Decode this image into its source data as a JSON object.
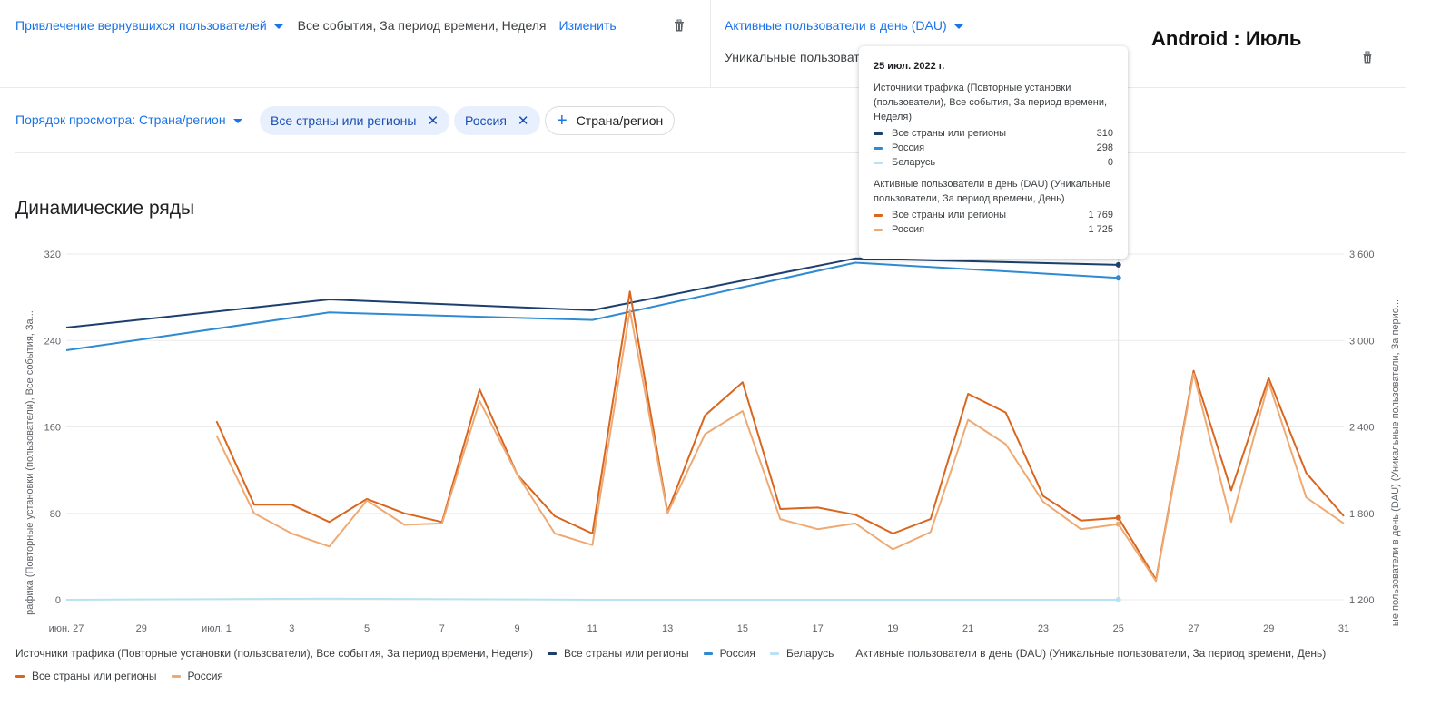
{
  "header": {
    "left": {
      "title": "Привлечение вернувшихся пользователей",
      "summary": "Все события, За период времени, Неделя",
      "edit_label": "Изменить"
    },
    "right": {
      "title": "Активные пользователи в день (DAU)",
      "summary": "Уникальные пользователи",
      "overlay_title": "Android : Июль"
    }
  },
  "filters": {
    "order_label": "Порядок просмотра: Страна/регион",
    "chips": [
      {
        "label": "Все страны или регионы"
      },
      {
        "label": "Россия"
      }
    ],
    "add_chip_label": "Страна/регион"
  },
  "section_title": "Динамические ряды",
  "tooltip": {
    "date": "25 июл. 2022 г.",
    "group1_title": "Источники трафика (Повторные установки (пользователи), Все события, За период времени, Неделя)",
    "group1_rows": [
      {
        "name": "Все страны или регионы",
        "value": "310",
        "color": "#1c3f6e"
      },
      {
        "name": "Россия",
        "value": "298",
        "color": "#2e8bd3"
      },
      {
        "name": "Беларусь",
        "value": "0",
        "color": "#b9e2f2"
      }
    ],
    "group2_title": "Активные пользователи в день (DAU) (Уникальные пользователи, За период времени, День)",
    "group2_rows": [
      {
        "name": "Все страны или регионы",
        "value": "1 769",
        "color": "#d9661f"
      },
      {
        "name": "Россия",
        "value": "1 725",
        "color": "#efaa74"
      }
    ]
  },
  "chart_data": {
    "type": "line",
    "left_axis": {
      "label": "рафика (Повторные установки (пользователи), Все события, За...",
      "ticks": [
        "320",
        "240",
        "160",
        "80",
        "0"
      ],
      "range": [
        0,
        320
      ]
    },
    "right_axis": {
      "label": "ые пользователи в день (DAU) (Уникальные пользователи, За перио...",
      "ticks": [
        "3 600",
        "3 000",
        "2 400",
        "1 800",
        "1 200"
      ],
      "range": [
        1200,
        3600
      ]
    },
    "x_ticks": [
      "июн. 27",
      "29",
      "июл. 1",
      "3",
      "5",
      "7",
      "9",
      "11",
      "13",
      "15",
      "17",
      "19",
      "21",
      "23",
      "25",
      "27",
      "29",
      "31"
    ],
    "weekly_x": [
      "июн. 27",
      "июл. 4",
      "июл. 11",
      "июл. 18",
      "июл. 25"
    ],
    "daily_x": [
      "июл. 1",
      "июл. 2",
      "июл. 3",
      "июл. 4",
      "июл. 5",
      "июл. 6",
      "июл. 7",
      "июл. 8",
      "июл. 9",
      "июл. 10",
      "июл. 11",
      "июл. 12",
      "июл. 13",
      "июл. 14",
      "июл. 15",
      "июл. 16",
      "июл. 17",
      "июл. 18",
      "июл. 19",
      "июл. 20",
      "июл. 21",
      "июл. 22",
      "июл. 23",
      "июл. 24",
      "июл. 25",
      "июл. 26",
      "июл. 27",
      "июл. 28",
      "июл. 29",
      "июл. 30",
      "июл. 31"
    ],
    "series": [
      {
        "name": "Все страны или регионы",
        "axis": "left",
        "group": "weekly",
        "color": "#1c3f6e",
        "values": [
          252,
          278,
          268,
          316,
          310
        ]
      },
      {
        "name": "Россия",
        "axis": "left",
        "group": "weekly",
        "color": "#2e8bd3",
        "values": [
          231,
          266,
          259,
          312,
          298
        ]
      },
      {
        "name": "Беларусь",
        "axis": "left",
        "group": "weekly",
        "color": "#b9e2f2",
        "values": [
          0,
          1,
          0,
          0,
          0
        ]
      },
      {
        "name": "Все страны или регионы",
        "axis": "right",
        "group": "daily",
        "color": "#d9661f",
        "values": [
          2440,
          1860,
          1860,
          1740,
          1900,
          1800,
          1740,
          2660,
          2070,
          1780,
          1660,
          3340,
          1810,
          2480,
          2710,
          1830,
          1840,
          1790,
          1660,
          1760,
          2630,
          2500,
          1920,
          1750,
          1769,
          1340,
          2790,
          1960,
          2740,
          2080,
          1780
        ]
      },
      {
        "name": "Россия",
        "axis": "right",
        "group": "daily",
        "color": "#efaa74",
        "values": [
          2340,
          1800,
          1660,
          1570,
          1890,
          1720,
          1730,
          2580,
          2070,
          1660,
          1580,
          3210,
          1800,
          2350,
          2510,
          1760,
          1690,
          1730,
          1550,
          1670,
          2450,
          2280,
          1880,
          1690,
          1725,
          1330,
          2770,
          1740,
          2710,
          1910,
          1730
        ]
      }
    ],
    "legend": {
      "group1_title": "Источники трафика (Повторные установки (пользователи), Все события, За период времени, Неделя)",
      "group2_title": "Активные пользователи в день (DAU) (Уникальные пользователи, За период времени, День)",
      "items": [
        "Все страны или регионы",
        "Россия",
        "Беларусь",
        "Все страны или регионы",
        "Россия"
      ]
    }
  }
}
